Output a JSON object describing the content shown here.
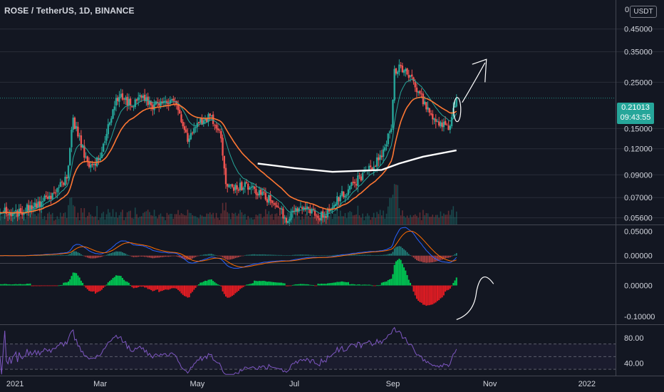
{
  "header": {
    "title": "ROSE / TetherUS, 1D, BINANCE",
    "currency_label": "USDT",
    "currency_prefix": "0"
  },
  "last_price": {
    "value": "0.21013",
    "countdown": "09:43:55"
  },
  "colors": {
    "background": "#131722",
    "up": "#26a69a",
    "down": "#ef5350",
    "ma_fast": "#26a69a",
    "ma_slow": "#ff7733",
    "ma_white": "#ffffff",
    "macd": "#2962ff",
    "signal": "#ff6d00",
    "rsi": "#7e57c2",
    "hist_green": "#00c853",
    "hist_red": "#e51c23"
  },
  "chart_data": [
    {
      "type": "candlestick",
      "title": "ROSE / TetherUS, 1D, BINANCE",
      "yscale": "log",
      "ylim": [
        0.052,
        0.62
      ],
      "y_ticks": [
        "0.45000",
        "0.35000",
        "0.25000",
        "0.15000",
        "0.12000",
        "0.09000",
        "0.07000",
        "0.05600"
      ],
      "x_ticks": [
        "2021",
        "Mar",
        "May",
        "Jul",
        "Sep",
        "Nov",
        "2022"
      ],
      "x_tick_dates": [
        "2021-01-01",
        "2021-03-01",
        "2021-05-01",
        "2021-07-01",
        "2021-09-01",
        "2021-11-01",
        "2022-01-01"
      ],
      "x_range": [
        "2020-12-28",
        "2022-01-19"
      ],
      "last_date": "2021-10-11",
      "close_anchors": [
        [
          "2020-12-28",
          0.062
        ],
        [
          "2021-01-05",
          0.058
        ],
        [
          "2021-01-14",
          0.062
        ],
        [
          "2021-01-21",
          0.066
        ],
        [
          "2021-02-01",
          0.072
        ],
        [
          "2021-02-08",
          0.09
        ],
        [
          "2021-02-12",
          0.165
        ],
        [
          "2021-02-16",
          0.135
        ],
        [
          "2021-02-22",
          0.095
        ],
        [
          "2021-03-01",
          0.11
        ],
        [
          "2021-03-08",
          0.175
        ],
        [
          "2021-03-13",
          0.22
        ],
        [
          "2021-03-20",
          0.195
        ],
        [
          "2021-03-27",
          0.215
        ],
        [
          "2021-04-03",
          0.19
        ],
        [
          "2021-04-12",
          0.205
        ],
        [
          "2021-04-18",
          0.195
        ],
        [
          "2021-04-25",
          0.135
        ],
        [
          "2021-05-02",
          0.16
        ],
        [
          "2021-05-10",
          0.17
        ],
        [
          "2021-05-16",
          0.135
        ],
        [
          "2021-05-19",
          0.08
        ],
        [
          "2021-05-25",
          0.078
        ],
        [
          "2021-06-01",
          0.08
        ],
        [
          "2021-06-10",
          0.072
        ],
        [
          "2021-06-20",
          0.066
        ],
        [
          "2021-06-25",
          0.055
        ],
        [
          "2021-07-05",
          0.062
        ],
        [
          "2021-07-12",
          0.06
        ],
        [
          "2021-07-20",
          0.056
        ],
        [
          "2021-07-28",
          0.068
        ],
        [
          "2021-08-06",
          0.08
        ],
        [
          "2021-08-15",
          0.092
        ],
        [
          "2021-08-25",
          0.11
        ],
        [
          "2021-08-31",
          0.15
        ],
        [
          "2021-09-02",
          0.28
        ],
        [
          "2021-09-06",
          0.3
        ],
        [
          "2021-09-12",
          0.265
        ],
        [
          "2021-09-18",
          0.22
        ],
        [
          "2021-09-24",
          0.175
        ],
        [
          "2021-10-01",
          0.16
        ],
        [
          "2021-10-06",
          0.15
        ],
        [
          "2021-10-11",
          0.21
        ]
      ],
      "series": [
        {
          "name": "Close",
          "type": "candle"
        },
        {
          "name": "EMA fast",
          "type": "line",
          "color": "#26a69a"
        },
        {
          "name": "EMA slow",
          "type": "line",
          "color": "#ff7733"
        },
        {
          "name": "Long MA",
          "type": "line",
          "color": "#ffffff",
          "points": [
            [
              "2021-06-08",
              0.102
            ],
            [
              "2021-07-01",
              0.097
            ],
            [
              "2021-07-25",
              0.093
            ],
            [
              "2021-08-25",
              0.095
            ],
            [
              "2021-09-05",
              0.102
            ],
            [
              "2021-09-20",
              0.11
            ],
            [
              "2021-10-11",
              0.118
            ]
          ]
        }
      ]
    },
    {
      "type": "line",
      "title": "",
      "ylim": [
        -0.015,
        0.062
      ],
      "y_ticks": [
        "0.05000",
        "0.00000"
      ],
      "series": [
        {
          "name": "MACD",
          "color": "#2962ff"
        },
        {
          "name": "Signal",
          "color": "#ff6d00"
        },
        {
          "name": "Histogram",
          "type": "bar"
        }
      ]
    },
    {
      "type": "bar",
      "title": "",
      "ylim": [
        -0.125,
        0.07
      ],
      "y_ticks": [
        "0.00000",
        "-0.10000"
      ],
      "series": [
        {
          "name": "Histogram",
          "colors": [
            "#00c853",
            "#e51c23"
          ]
        }
      ]
    },
    {
      "type": "line",
      "title": "",
      "ylim": [
        20,
        100
      ],
      "y_ticks": [
        "80.00",
        "40.00"
      ],
      "bands": [
        70,
        50,
        30
      ],
      "series": [
        {
          "name": "RSI",
          "color": "#7e57c2"
        }
      ]
    }
  ]
}
